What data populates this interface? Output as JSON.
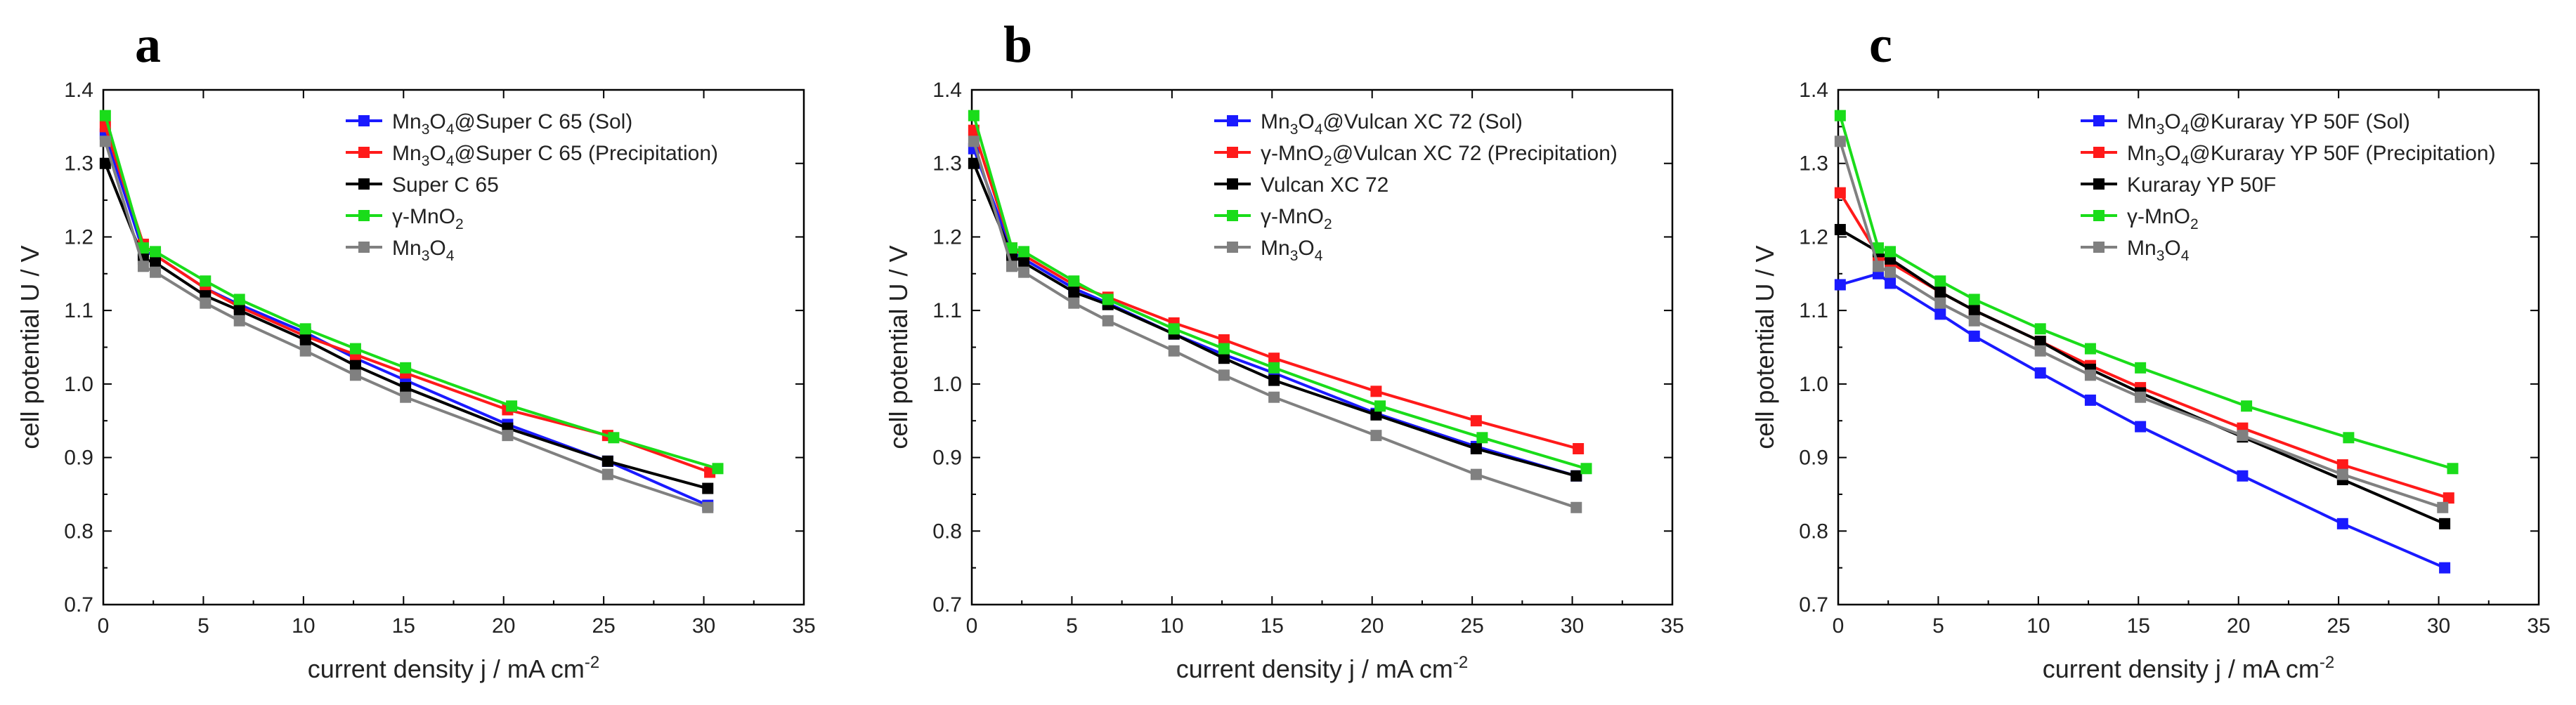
{
  "chart_data": [
    {
      "type": "line",
      "panel_label": "a",
      "xlabel_main": "current density j / mA cm",
      "xlabel_sup": "-2",
      "ylabel": "cell potential U / V",
      "xlim": [
        0,
        35
      ],
      "ylim": [
        0.7,
        1.4
      ],
      "xticks": [
        0,
        5,
        10,
        15,
        20,
        25,
        30,
        35
      ],
      "yticks": [
        0.7,
        0.8,
        0.9,
        1.0,
        1.1,
        1.2,
        1.3,
        1.4
      ],
      "xtick_labels": [
        "0",
        "5",
        "10",
        "15",
        "20",
        "25",
        "30",
        "35"
      ],
      "ytick_labels": [
        "0.7",
        "0.8",
        "0.9",
        "1.0",
        "1.1",
        "1.2",
        "1.3",
        "1.4"
      ],
      "legend_position": "top-right",
      "series": [
        {
          "name": "Mn3O4@Super C 65 (Sol)",
          "label_parts": [
            [
              "Mn",
              ""
            ],
            [
              "3",
              "sub"
            ],
            [
              "O",
              ""
            ],
            [
              "4",
              "sub"
            ],
            [
              "@Super C 65 (Sol)",
              ""
            ]
          ],
          "color": "#1a1aff",
          "x": [
            0.1,
            2.0,
            2.6,
            5.1,
            6.8,
            10.1,
            12.6,
            15.1,
            20.2,
            25.2,
            30.2
          ],
          "y": [
            1.34,
            1.18,
            1.175,
            1.13,
            1.108,
            1.07,
            1.035,
            1.005,
            0.945,
            0.895,
            0.835
          ]
        },
        {
          "name": "Mn3O4@Super C 65 (Precipitation)",
          "label_parts": [
            [
              "Mn",
              ""
            ],
            [
              "3",
              "sub"
            ],
            [
              "O",
              ""
            ],
            [
              "4",
              "sub"
            ],
            [
              "@Super C 65 (Precipitation)",
              ""
            ]
          ],
          "color": "#ff1a1a",
          "x": [
            0.1,
            2.0,
            2.6,
            5.1,
            6.8,
            10.1,
            12.6,
            15.1,
            20.2,
            25.2,
            30.3
          ],
          "y": [
            1.35,
            1.19,
            1.175,
            1.13,
            1.105,
            1.065,
            1.04,
            1.015,
            0.965,
            0.93,
            0.88
          ]
        },
        {
          "name": "Super C 65",
          "label_parts": [
            [
              "Super C 65",
              ""
            ]
          ],
          "color": "#000000",
          "x": [
            0.1,
            2.0,
            2.6,
            5.1,
            6.8,
            10.1,
            12.6,
            15.1,
            20.2,
            25.2,
            30.2
          ],
          "y": [
            1.3,
            1.17,
            1.165,
            1.12,
            1.1,
            1.06,
            1.025,
            0.995,
            0.94,
            0.895,
            0.858
          ]
        },
        {
          "name": "γ-MnO2",
          "label_parts": [
            [
              "γ-MnO",
              ""
            ],
            [
              "2",
              "sub"
            ]
          ],
          "color": "#1adc1a",
          "x": [
            0.1,
            2.0,
            2.6,
            5.1,
            6.8,
            10.1,
            12.6,
            15.1,
            20.4,
            25.5,
            30.7
          ],
          "y": [
            1.365,
            1.185,
            1.18,
            1.14,
            1.115,
            1.075,
            1.048,
            1.022,
            0.97,
            0.927,
            0.885
          ]
        },
        {
          "name": "Mn3O4",
          "label_parts": [
            [
              "Mn",
              ""
            ],
            [
              "3",
              "sub"
            ],
            [
              "O",
              ""
            ],
            [
              "4",
              "sub"
            ]
          ],
          "color": "#808080",
          "x": [
            0.1,
            2.0,
            2.6,
            5.1,
            6.8,
            10.1,
            12.6,
            15.1,
            20.2,
            25.2,
            30.2
          ],
          "y": [
            1.33,
            1.16,
            1.152,
            1.11,
            1.086,
            1.045,
            1.012,
            0.982,
            0.93,
            0.877,
            0.832
          ]
        }
      ]
    },
    {
      "type": "line",
      "panel_label": "b",
      "xlabel_main": "current density j / mA cm",
      "xlabel_sup": "-2",
      "ylabel": "cell potential U / V",
      "xlim": [
        0,
        35
      ],
      "ylim": [
        0.7,
        1.4
      ],
      "xticks": [
        0,
        5,
        10,
        15,
        20,
        25,
        30,
        35
      ],
      "yticks": [
        0.7,
        0.8,
        0.9,
        1.0,
        1.1,
        1.2,
        1.3,
        1.4
      ],
      "xtick_labels": [
        "0",
        "5",
        "10",
        "15",
        "20",
        "25",
        "30",
        "35"
      ],
      "ytick_labels": [
        "0.7",
        "0.8",
        "0.9",
        "1.0",
        "1.1",
        "1.2",
        "1.3",
        "1.4"
      ],
      "legend_position": "top-right",
      "series": [
        {
          "name": "Mn3O4@Vulcan XC 72 (Sol)",
          "label_parts": [
            [
              "Mn",
              ""
            ],
            [
              "3",
              "sub"
            ],
            [
              "O",
              ""
            ],
            [
              "4",
              "sub"
            ],
            [
              "@Vulcan XC 72 (Sol)",
              ""
            ]
          ],
          "color": "#1a1aff",
          "x": [
            0.1,
            2.0,
            2.6,
            5.1,
            6.8,
            10.1,
            12.6,
            15.1,
            20.2,
            25.2,
            30.2
          ],
          "y": [
            1.32,
            1.18,
            1.17,
            1.13,
            1.11,
            1.068,
            1.04,
            1.015,
            0.96,
            0.915,
            0.875
          ]
        },
        {
          "name": "γ-MnO2@Vulcan XC 72 (Precipitation)",
          "label_parts": [
            [
              "γ-MnO",
              ""
            ],
            [
              "2",
              "sub"
            ],
            [
              "@Vulcan XC 72 (Precipitation)",
              ""
            ]
          ],
          "color": "#ff1a1a",
          "x": [
            0.1,
            2.0,
            2.6,
            5.1,
            6.8,
            10.1,
            12.6,
            15.1,
            20.2,
            25.2,
            30.3
          ],
          "y": [
            1.345,
            1.185,
            1.175,
            1.135,
            1.118,
            1.083,
            1.06,
            1.035,
            0.99,
            0.95,
            0.912
          ]
        },
        {
          "name": "Vulcan XC 72",
          "label_parts": [
            [
              "Vulcan XC 72",
              ""
            ]
          ],
          "color": "#000000",
          "x": [
            0.1,
            2.0,
            2.6,
            5.1,
            6.8,
            10.1,
            12.6,
            15.1,
            20.2,
            25.2,
            30.2
          ],
          "y": [
            1.3,
            1.175,
            1.165,
            1.125,
            1.108,
            1.068,
            1.035,
            1.005,
            0.958,
            0.912,
            0.875
          ]
        },
        {
          "name": "γ-MnO2",
          "label_parts": [
            [
              "γ-MnO",
              ""
            ],
            [
              "2",
              "sub"
            ]
          ],
          "color": "#1adc1a",
          "x": [
            0.1,
            2.0,
            2.6,
            5.1,
            6.8,
            10.1,
            12.6,
            15.1,
            20.4,
            25.5,
            30.7
          ],
          "y": [
            1.365,
            1.185,
            1.18,
            1.14,
            1.115,
            1.075,
            1.048,
            1.022,
            0.97,
            0.927,
            0.885
          ]
        },
        {
          "name": "Mn3O4",
          "label_parts": [
            [
              "Mn",
              ""
            ],
            [
              "3",
              "sub"
            ],
            [
              "O",
              ""
            ],
            [
              "4",
              "sub"
            ]
          ],
          "color": "#808080",
          "x": [
            0.1,
            2.0,
            2.6,
            5.1,
            6.8,
            10.1,
            12.6,
            15.1,
            20.2,
            25.2,
            30.2
          ],
          "y": [
            1.33,
            1.16,
            1.152,
            1.11,
            1.086,
            1.045,
            1.012,
            0.982,
            0.93,
            0.877,
            0.832
          ]
        }
      ]
    },
    {
      "type": "line",
      "panel_label": "c",
      "xlabel_main": "current density j / mA cm",
      "xlabel_sup": "-2",
      "ylabel": "cell potential U / V",
      "xlim": [
        0,
        35
      ],
      "ylim": [
        0.7,
        1.4
      ],
      "xticks": [
        0,
        5,
        10,
        15,
        20,
        25,
        30,
        35
      ],
      "yticks": [
        0.7,
        0.8,
        0.9,
        1.0,
        1.1,
        1.2,
        1.3,
        1.4
      ],
      "xtick_labels": [
        "0",
        "5",
        "10",
        "15",
        "20",
        "25",
        "30",
        "35"
      ],
      "ytick_labels": [
        "0.7",
        "0.8",
        "0.9",
        "1.0",
        "1.1",
        "1.2",
        "1.3",
        "1.4"
      ],
      "legend_position": "top-right",
      "series": [
        {
          "name": "Mn3O4@Kuraray YP 50F (Sol)",
          "label_parts": [
            [
              "Mn",
              ""
            ],
            [
              "3",
              "sub"
            ],
            [
              "O",
              ""
            ],
            [
              "4",
              "sub"
            ],
            [
              "@Kuraray YP 50F (Sol)",
              ""
            ]
          ],
          "color": "#1a1aff",
          "x": [
            0.1,
            2.0,
            2.6,
            5.1,
            6.8,
            10.1,
            12.6,
            15.1,
            20.2,
            25.2,
            30.3
          ],
          "y": [
            1.135,
            1.15,
            1.137,
            1.095,
            1.065,
            1.015,
            0.978,
            0.942,
            0.875,
            0.81,
            0.75
          ]
        },
        {
          "name": "Mn3O4@Kuraray YP 50F (Precipitation)",
          "label_parts": [
            [
              "Mn",
              ""
            ],
            [
              "3",
              "sub"
            ],
            [
              "O",
              ""
            ],
            [
              "4",
              "sub"
            ],
            [
              "@Kuraray YP 50F (Precipitation)",
              ""
            ]
          ],
          "color": "#ff1a1a",
          "x": [
            0.1,
            2.0,
            2.6,
            5.1,
            6.8,
            10.1,
            12.6,
            15.1,
            20.2,
            25.2,
            30.5
          ],
          "y": [
            1.26,
            1.175,
            1.165,
            1.125,
            1.1,
            1.058,
            1.025,
            0.995,
            0.94,
            0.89,
            0.845
          ]
        },
        {
          "name": "Kuraray YP 50F",
          "label_parts": [
            [
              "Kuraray YP 50F",
              ""
            ]
          ],
          "color": "#000000",
          "x": [
            0.1,
            2.0,
            2.6,
            5.1,
            6.8,
            10.1,
            12.6,
            15.1,
            20.2,
            25.2,
            30.3
          ],
          "y": [
            1.21,
            1.18,
            1.17,
            1.125,
            1.1,
            1.058,
            1.02,
            0.988,
            0.928,
            0.87,
            0.81
          ]
        },
        {
          "name": "γ-MnO2",
          "label_parts": [
            [
              "γ-MnO",
              ""
            ],
            [
              "2",
              "sub"
            ]
          ],
          "color": "#1adc1a",
          "x": [
            0.1,
            2.0,
            2.6,
            5.1,
            6.8,
            10.1,
            12.6,
            15.1,
            20.4,
            25.5,
            30.7
          ],
          "y": [
            1.365,
            1.185,
            1.18,
            1.14,
            1.115,
            1.075,
            1.048,
            1.022,
            0.97,
            0.927,
            0.885
          ]
        },
        {
          "name": "Mn3O4",
          "label_parts": [
            [
              "Mn",
              ""
            ],
            [
              "3",
              "sub"
            ],
            [
              "O",
              ""
            ],
            [
              "4",
              "sub"
            ]
          ],
          "color": "#808080",
          "x": [
            0.1,
            2.0,
            2.6,
            5.1,
            6.8,
            10.1,
            12.6,
            15.1,
            20.2,
            25.2,
            30.2
          ],
          "y": [
            1.33,
            1.16,
            1.152,
            1.11,
            1.086,
            1.045,
            1.012,
            0.982,
            0.93,
            0.877,
            0.832
          ]
        }
      ]
    }
  ]
}
